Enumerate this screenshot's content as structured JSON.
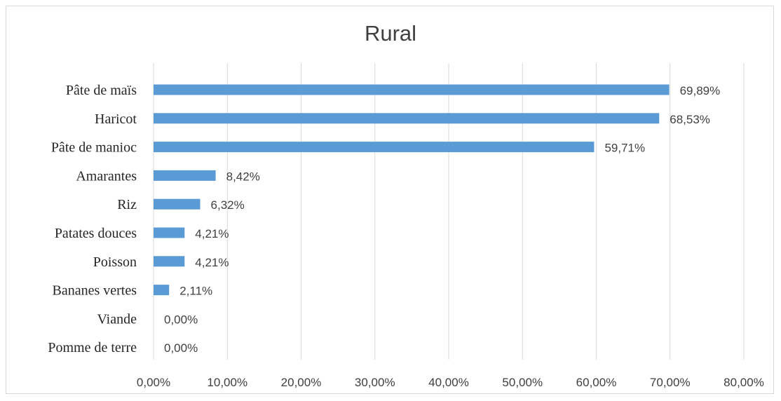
{
  "chart_data": {
    "type": "bar",
    "orientation": "horizontal",
    "title": "Rural",
    "categories": [
      "Pâte de maïs",
      "Haricot",
      "Pâte de manioc",
      "Amarantes",
      "Riz",
      "Patates douces",
      "Poisson",
      "Bananes vertes",
      "Viande",
      "Pomme de terre"
    ],
    "values": [
      69.89,
      68.53,
      59.71,
      8.42,
      6.32,
      4.21,
      4.21,
      2.11,
      0.0,
      0.0
    ],
    "value_labels": [
      "69,89%",
      "68,53%",
      "59,71%",
      "8,42%",
      "6,32%",
      "4,21%",
      "4,21%",
      "2,11%",
      "0,00%",
      "0,00%"
    ],
    "xlim": [
      0,
      80
    ],
    "xticks": [
      0,
      10,
      20,
      30,
      40,
      50,
      60,
      70,
      80
    ],
    "xtick_labels": [
      "0,00%",
      "10,00%",
      "20,00%",
      "30,00%",
      "40,00%",
      "50,00%",
      "60,00%",
      "70,00%",
      "80,00%"
    ],
    "grid": "vertical",
    "bar_color": "#5b9bd5",
    "grid_color": "#d9d9d9",
    "legend": "none"
  }
}
